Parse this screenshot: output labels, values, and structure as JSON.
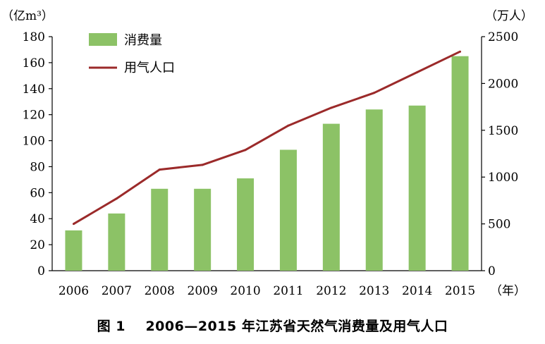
{
  "caption": {
    "figure_no": "图 1",
    "text": "2006—2015 年江苏省天然气消费量及用气人口"
  },
  "chart_data": {
    "type": "bar",
    "categories": [
      "2006",
      "2007",
      "2008",
      "2009",
      "2010",
      "2011",
      "2012",
      "2013",
      "2014",
      "2015"
    ],
    "x_unit": "（年）",
    "y_left": {
      "unit": "（亿m³）",
      "ylim": [
        0,
        180
      ],
      "ticks": [
        0,
        20,
        40,
        60,
        80,
        100,
        120,
        140,
        160,
        180
      ]
    },
    "y_right": {
      "unit": "（万人）",
      "ylim": [
        0,
        2500
      ],
      "ticks": [
        0,
        500,
        1000,
        1500,
        2000,
        2500
      ]
    },
    "legend_position": "top-left",
    "grid": false,
    "series": [
      {
        "name": "消费量",
        "type": "bar",
        "axis": "left",
        "color": "#8cc266",
        "values": [
          31,
          44,
          63,
          63,
          71,
          93,
          113,
          124,
          127,
          165
        ]
      },
      {
        "name": "用气人口",
        "type": "line",
        "axis": "right",
        "color": "#9b2a2a",
        "values": [
          500,
          770,
          1080,
          1130,
          1290,
          1550,
          1740,
          1900,
          2120,
          2340
        ]
      }
    ]
  }
}
